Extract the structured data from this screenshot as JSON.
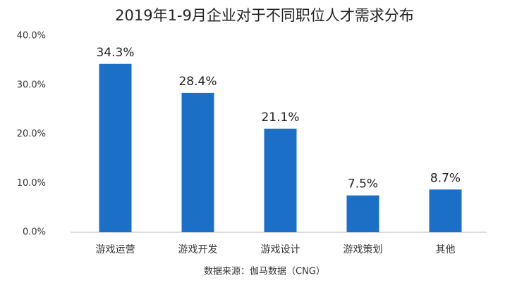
{
  "chart_data": {
    "type": "bar",
    "title": "2019年1-9月企业对于不同职位人才需求分布",
    "categories": [
      "游戏运营",
      "游戏开发",
      "游戏设计",
      "游戏策划",
      "其他"
    ],
    "values": [
      34.3,
      28.4,
      21.1,
      7.5,
      8.7
    ],
    "value_labels": [
      "34.3%",
      "28.4%",
      "21.1%",
      "7.5%",
      "8.7%"
    ],
    "color": "#1c6fc6",
    "ylim": [
      0,
      40
    ],
    "yticks": [
      {
        "value": 0,
        "label": "0.0%"
      },
      {
        "value": 10,
        "label": "10.0%"
      },
      {
        "value": 20,
        "label": "20.0%"
      },
      {
        "value": 30,
        "label": "30.0%"
      },
      {
        "value": 40,
        "label": "40.0%"
      }
    ],
    "grid": false,
    "source": "数据来源：伽马数据（CNG）"
  }
}
